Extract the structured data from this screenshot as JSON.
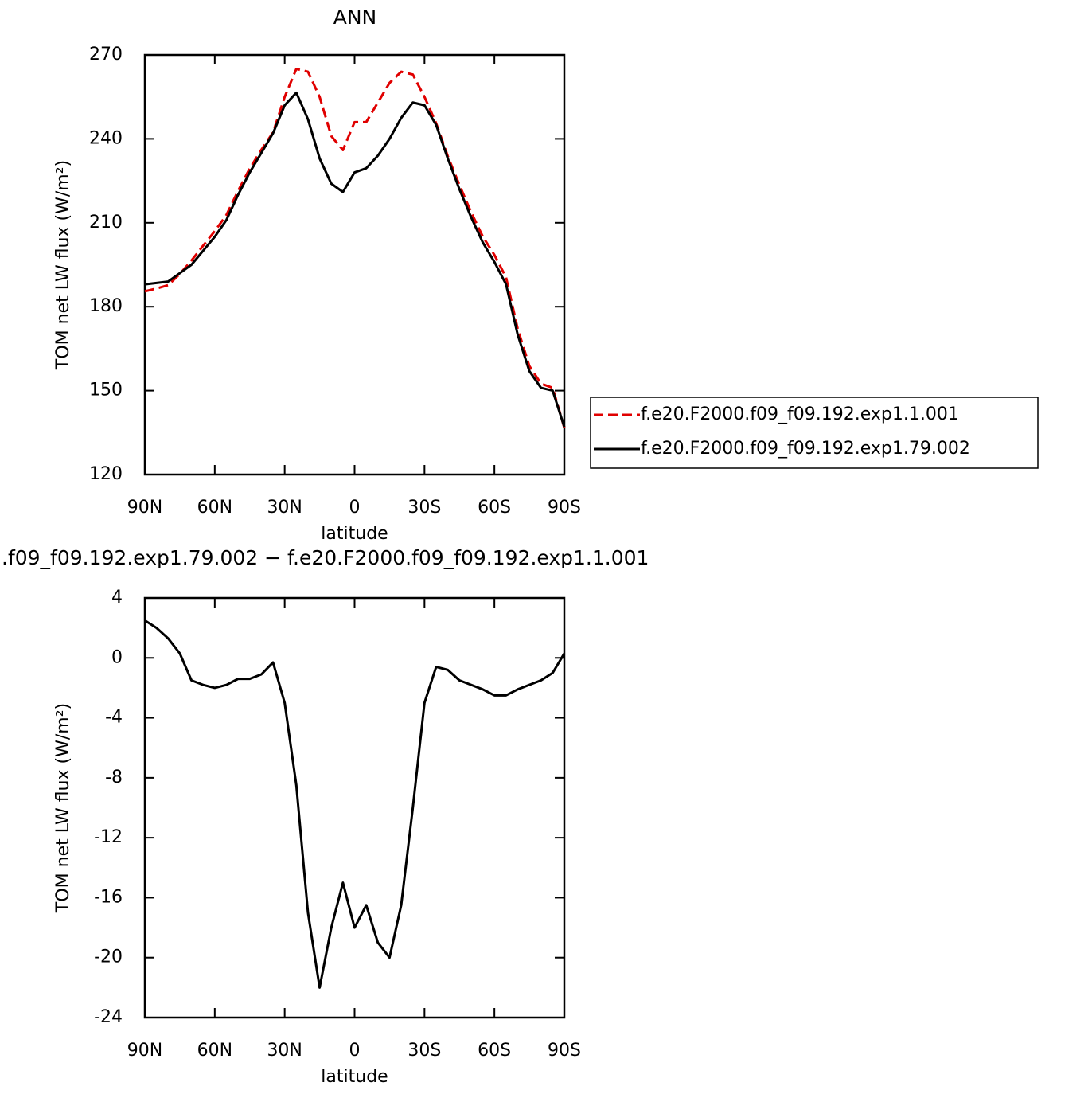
{
  "chart_data": [
    {
      "type": "line",
      "title": "ANN",
      "x_label": "latitude",
      "y_label": "TOM net LW flux (W/m²)",
      "x": [
        90,
        85,
        80,
        75,
        70,
        65,
        60,
        55,
        50,
        45,
        40,
        35,
        30,
        25,
        20,
        15,
        10,
        5,
        0,
        -5,
        -10,
        -15,
        -20,
        -25,
        -30,
        -35,
        -40,
        -45,
        -50,
        -55,
        -60,
        -65,
        -70,
        -75,
        -80,
        -85,
        -90
      ],
      "xlim": [
        90,
        -90
      ],
      "xticks": [
        {
          "value": 90,
          "label": "90N"
        },
        {
          "value": 60,
          "label": "60N"
        },
        {
          "value": 30,
          "label": "30N"
        },
        0,
        {
          "value": -30,
          "label": "30S"
        },
        {
          "value": -60,
          "label": "60S"
        },
        {
          "value": -90,
          "label": "90S"
        }
      ],
      "ylim": [
        120,
        270
      ],
      "yticks": [
        120,
        150,
        180,
        210,
        240,
        270
      ],
      "legend": "right",
      "series": [
        {
          "name": "f.e20.F2000.f09_f09.192.exp1.1.001",
          "color": "#e00000",
          "line_style": "dashed",
          "values": [
            185.5,
            186.5,
            187.7,
            191.7,
            196.5,
            201.8,
            207,
            212.8,
            221.4,
            229.4,
            236.1,
            242.3,
            255,
            265,
            264,
            255,
            241,
            236,
            246,
            246,
            253,
            260,
            264,
            263,
            255,
            245.6,
            233.8,
            223.5,
            213.8,
            205.1,
            198.5,
            190.5,
            172.1,
            158.8,
            152.5,
            151,
            136.7
          ]
        },
        {
          "name": "f.e20.F2000.f09_f09.192.exp1.79.002",
          "color": "#000000",
          "line_style": "solid",
          "values": [
            188,
            188.5,
            189,
            192,
            195,
            200,
            205,
            211,
            220,
            228,
            235,
            242,
            252,
            256.5,
            247,
            233,
            224,
            221,
            228,
            229.5,
            234,
            240,
            247.5,
            253,
            252,
            245,
            233,
            222,
            212,
            203,
            196,
            188,
            170,
            157,
            151,
            150,
            137
          ]
        }
      ]
    },
    {
      "type": "line",
      "title": ".f09_f09.192.exp1.79.002 − f.e20.F2000.f09_f09.192.exp1.1.001",
      "x_label": "latitude",
      "y_label": "TOM net LW flux (W/m²)",
      "x": [
        90,
        85,
        80,
        75,
        70,
        65,
        60,
        55,
        50,
        45,
        40,
        35,
        30,
        25,
        20,
        15,
        10,
        5,
        0,
        -5,
        -10,
        -15,
        -20,
        -25,
        -30,
        -35,
        -40,
        -45,
        -50,
        -55,
        -60,
        -65,
        -70,
        -75,
        -80,
        -85,
        -90
      ],
      "xlim": [
        90,
        -90
      ],
      "xticks": [
        {
          "value": 90,
          "label": "90N"
        },
        {
          "value": 60,
          "label": "60N"
        },
        {
          "value": 30,
          "label": "30N"
        },
        0,
        {
          "value": -30,
          "label": "30S"
        },
        {
          "value": -60,
          "label": "60S"
        },
        {
          "value": -90,
          "label": "90S"
        }
      ],
      "ylim": [
        -24,
        4
      ],
      "yticks": [
        -24,
        -20,
        -16,
        -12,
        -8,
        -4,
        0,
        4
      ],
      "series": [
        {
          "color": "#000000",
          "line_style": "solid",
          "values": [
            2.5,
            2,
            1.3,
            0.3,
            -1.5,
            -1.8,
            -2,
            -1.8,
            -1.4,
            -1.4,
            -1.1,
            -0.3,
            -3,
            -8.5,
            -17,
            -22,
            -18,
            -15,
            -18,
            -16.5,
            -19,
            -20,
            -16.5,
            -10,
            -3,
            -0.6,
            -0.8,
            -1.5,
            -1.8,
            -2.1,
            -2.5,
            -2.5,
            -2.1,
            -1.8,
            -1.5,
            -1,
            0.3
          ]
        }
      ]
    }
  ]
}
